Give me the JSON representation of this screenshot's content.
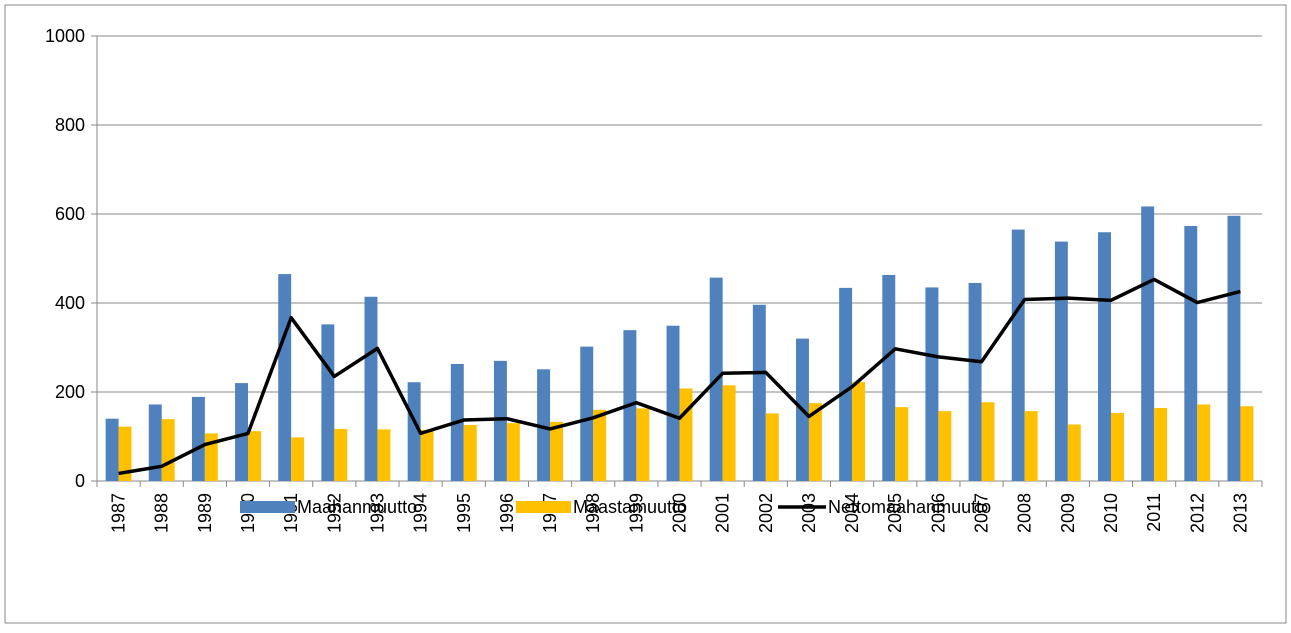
{
  "chart_data": {
    "type": "bar_line",
    "categories": [
      "1987",
      "1988",
      "1989",
      "1990",
      "1991",
      "1992",
      "1993",
      "1994",
      "1995",
      "1996",
      "1997",
      "1998",
      "1999",
      "2000",
      "2001",
      "2002",
      "2003",
      "2004",
      "2005",
      "2006",
      "2007",
      "2008",
      "2009",
      "2010",
      "2011",
      "2012",
      "2013"
    ],
    "series": [
      {
        "name": "Maahanmuutto",
        "type": "bar",
        "color": "#4f81bd",
        "values": [
          140,
          172,
          189,
          220,
          465,
          352,
          414,
          222,
          263,
          270,
          251,
          302,
          339,
          349,
          457,
          396,
          320,
          434,
          463,
          435,
          445,
          565,
          538,
          559,
          617,
          573,
          596
        ]
      },
      {
        "name": "Maastamuutto",
        "type": "bar",
        "color": "#ffc000",
        "values": [
          122,
          139,
          107,
          112,
          98,
          117,
          116,
          115,
          126,
          130,
          133,
          160,
          163,
          208,
          215,
          152,
          175,
          222,
          166,
          157,
          177,
          157,
          127,
          153,
          164,
          172,
          168
        ]
      },
      {
        "name": "Nettomaahanmuutto",
        "type": "line",
        "color": "#000000",
        "values": [
          17,
          33,
          82,
          107,
          367,
          235,
          298,
          107,
          137,
          140,
          117,
          142,
          176,
          141,
          242,
          244,
          145,
          212,
          297,
          279,
          268,
          408,
          411,
          406,
          453,
          401,
          426
        ]
      }
    ],
    "ylim": [
      0,
      1000
    ],
    "yticks": [
      0,
      200,
      400,
      600,
      800,
      1000
    ],
    "grid": true,
    "legend": "bottom"
  }
}
